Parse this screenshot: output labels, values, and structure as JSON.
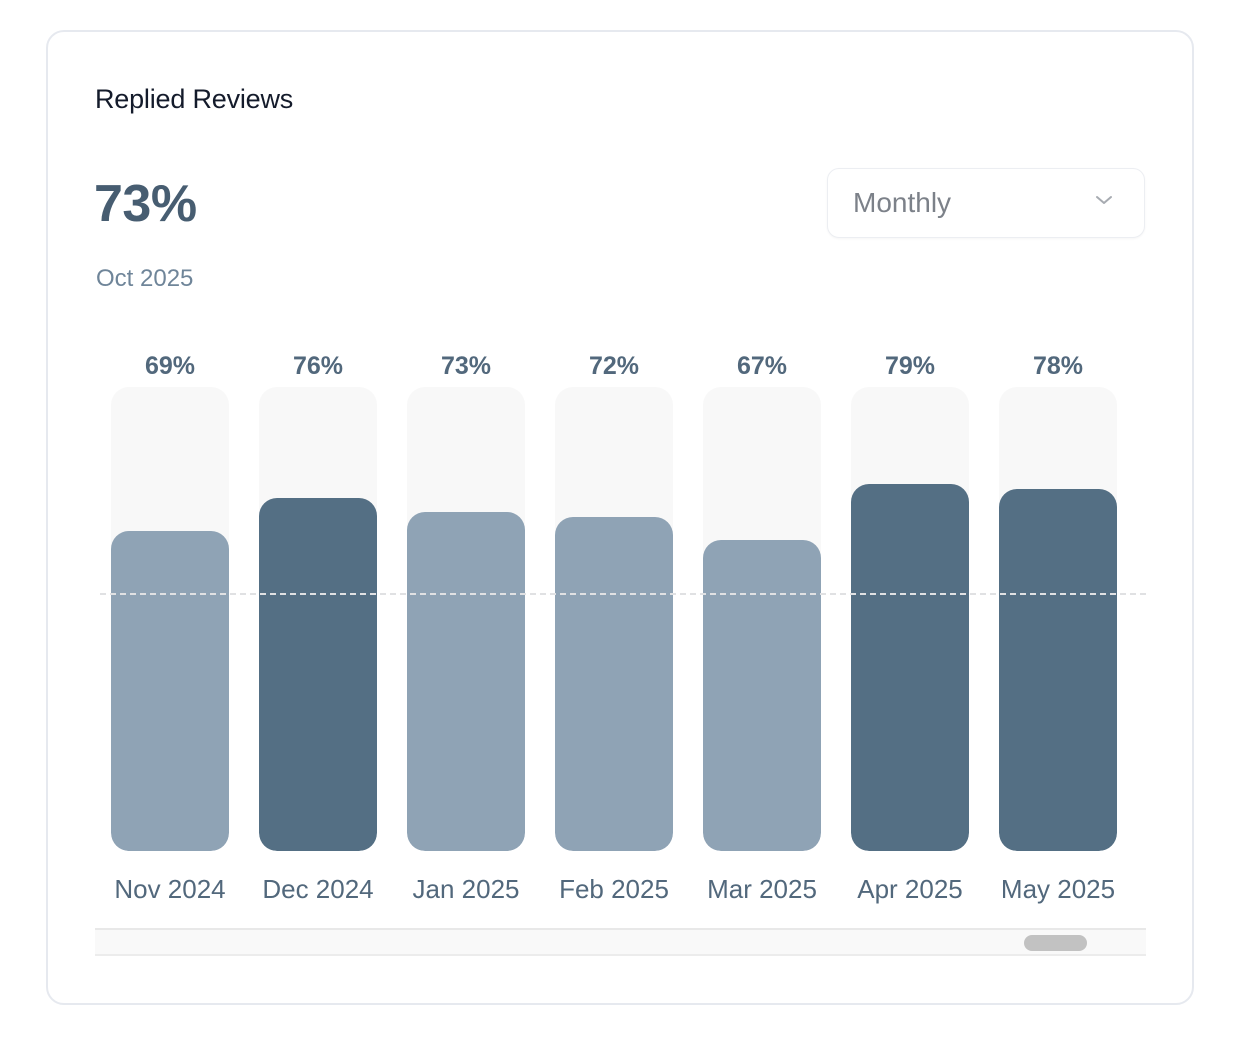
{
  "card": {
    "title": "Replied Reviews",
    "current_value": "73%",
    "current_period": "Oct 2025",
    "dropdown": {
      "selected": "Monthly",
      "icon": "chevron-down-icon"
    }
  },
  "colors": {
    "bar_high": "#546f84",
    "bar_low": "#8fa3b5",
    "track": "#f8f8f8",
    "label": "#52687c"
  },
  "chart_data": {
    "type": "bar",
    "title": "Replied Reviews",
    "categories": [
      "Nov 2024",
      "Dec 2024",
      "Jan 2025",
      "Feb 2025",
      "Mar 2025",
      "Apr 2025",
      "May 2025"
    ],
    "values": [
      69,
      76,
      73,
      72,
      67,
      79,
      78
    ],
    "data_labels": [
      "69%",
      "76%",
      "73%",
      "72%",
      "67%",
      "79%",
      "78%"
    ],
    "highlighted": [
      false,
      true,
      false,
      false,
      false,
      true,
      true
    ],
    "ylim": [
      0,
      100
    ],
    "unit": "%",
    "xlabel": "",
    "ylabel": "",
    "grid": false,
    "reference_line": "dashed"
  }
}
